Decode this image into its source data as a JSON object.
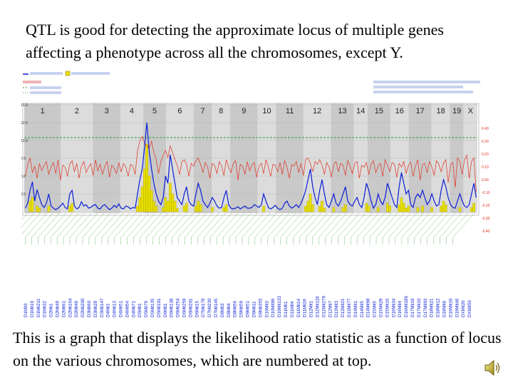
{
  "slide": {
    "title": "QTL is good for detecting the approximate locus of multiple genes affecting a phenotype across all the chromosomes, except Y.",
    "caption": "This is a graph that displays the likelihood ratio statistic as a function of locus on the various chromosomes, which are numbered at top."
  },
  "chart_data": {
    "type": "line",
    "chromosomes": [
      "1",
      "2",
      "3",
      "4",
      "5",
      "6",
      "7",
      "8",
      "9",
      "10",
      "11",
      "12",
      "13",
      "14",
      "15",
      "16",
      "17",
      "18",
      "19",
      "X"
    ],
    "chromosome_lengths": [
      8,
      7,
      6,
      5,
      5,
      6,
      4,
      4,
      6,
      4,
      6,
      6,
      5,
      3,
      5,
      4,
      5,
      4,
      3,
      3
    ],
    "ylim": [
      0,
      15
    ],
    "right_ylim": [
      -0.5,
      0.5
    ],
    "threshold_lrs": 10.4,
    "ticks_left": [
      "2.5",
      "5.0",
      "7.5",
      "10.0",
      "12.5",
      "15.0"
    ],
    "ticks_right": [
      "0.40",
      "0.30",
      "0.20",
      "0.10",
      "0.00",
      "-0.10",
      "-0.20",
      "-0.30",
      "-0.40"
    ],
    "series": [
      {
        "name": "LRS",
        "color": "#0b1fd6",
        "values": [
          0.5,
          1.2,
          3.0,
          4.2,
          1.5,
          3.1,
          2.0,
          1.0,
          0.6,
          1.2,
          2.5,
          0.8,
          0.5,
          0.3,
          0.5,
          0.8,
          1.2,
          0.6,
          0.4,
          2.5,
          3.0,
          0.8,
          0.4,
          0.6,
          1.4,
          0.8,
          1.0,
          0.5,
          0.6,
          0.9,
          1.0,
          0.5,
          0.4,
          0.8,
          1.0,
          0.6,
          0.3,
          0.5,
          0.9,
          0.6,
          1.1,
          0.5,
          0.4,
          0.8,
          0.7,
          0.4,
          0.6,
          0.5,
          2.5,
          4.5,
          6.0,
          9.0,
          12.5,
          8.5,
          6.0,
          4.0,
          2.5,
          1.5,
          1.0,
          2.0,
          5.0,
          4.0,
          8.0,
          6.0,
          4.0,
          2.0,
          1.5,
          1.0,
          2.5,
          3.5,
          1.5,
          1.0,
          0.8,
          2.5,
          4.0,
          3.0,
          1.5,
          1.0,
          0.6,
          1.2,
          2.0,
          1.5,
          0.8,
          0.5,
          0.6,
          2.0,
          3.0,
          1.0,
          0.5,
          0.4,
          0.5,
          0.7,
          0.4,
          0.6,
          0.8,
          0.5,
          0.5,
          0.6,
          1.0,
          0.8,
          0.6,
          1.0,
          2.5,
          1.5,
          0.6,
          0.4,
          0.6,
          0.9,
          0.5,
          0.3,
          0.5,
          1.2,
          1.5,
          0.8,
          0.5,
          0.7,
          1.0,
          0.6,
          1.2,
          2.0,
          3.0,
          4.5,
          6.0,
          3.5,
          2.0,
          1.0,
          3.0,
          4.5,
          2.5,
          1.0,
          0.6,
          1.5,
          2.5,
          1.2,
          0.8,
          1.5,
          2.5,
          3.5,
          1.5,
          1.0,
          0.8,
          1.5,
          2.0,
          1.0,
          0.6,
          2.0,
          4.0,
          3.0,
          1.5,
          0.5,
          1.0,
          2.5,
          1.5,
          1.0,
          2.0,
          4.0,
          3.0,
          2.0,
          1.0,
          0.6,
          3.5,
          5.5,
          4.0,
          2.5,
          3.0,
          1.0,
          0.6,
          2.0,
          2.5,
          2.0,
          3.0,
          2.0,
          1.0,
          1.5,
          2.5,
          1.5,
          0.8,
          1.0,
          3.0,
          4.5,
          3.5,
          2.0,
          1.0,
          0.6,
          0.5,
          1.5,
          2.5,
          1.5,
          0.8,
          0.6,
          1.0,
          2.5,
          4.0,
          2.0
        ]
      },
      {
        "name": "Additive effect",
        "color": "#e03020",
        "values": [
          -0.08,
          0.05,
          0.12,
          -0.04,
          0.03,
          -0.1,
          0.06,
          -0.02,
          0.04,
          0.08,
          -0.06,
          0.02,
          0.07,
          -0.05,
          0.1,
          -0.12,
          0.04,
          0.02,
          -0.08,
          0.05,
          0.09,
          -0.03,
          0.06,
          -0.1,
          0.03,
          0.08,
          -0.04,
          0.02,
          0.06,
          -0.07,
          0.1,
          -0.02,
          0.05,
          -0.06,
          0.03,
          0.08,
          -0.09,
          0.04,
          0.01,
          -0.05,
          0.07,
          -0.03,
          0.06,
          0.02,
          -0.08,
          0.05,
          0.03,
          -0.06,
          0.2,
          0.3,
          0.35,
          0.28,
          0.25,
          0.22,
          0.3,
          0.18,
          0.1,
          -0.05,
          0.08,
          0.15,
          0.2,
          0.12,
          0.25,
          0.18,
          0.1,
          0.04,
          -0.06,
          0.08,
          0.1,
          0.05,
          -0.08,
          0.06,
          0.03,
          0.09,
          0.12,
          0.05,
          -0.04,
          0.07,
          0.02,
          -0.1,
          0.06,
          0.04,
          -0.05,
          0.08,
          0.03,
          -0.07,
          0.1,
          0.02,
          -0.04,
          0.06,
          0.09,
          -0.12,
          0.05,
          0.03,
          -0.06,
          0.08,
          -0.02,
          0.04,
          0.07,
          -0.09,
          0.03,
          0.06,
          -0.05,
          0.1,
          0.02,
          -0.08,
          0.05,
          0.04,
          -0.03,
          0.07,
          -0.06,
          0.09,
          0.02,
          -0.1,
          0.05,
          0.03,
          0.08,
          -0.04,
          0.06,
          -0.07,
          0.1,
          0.12,
          0.06,
          -0.03,
          0.08,
          0.05,
          0.1,
          0.04,
          -0.06,
          0.07,
          0.02,
          -0.09,
          0.05,
          0.08,
          -0.03,
          0.06,
          0.04,
          -0.07,
          0.09,
          0.03,
          -0.05,
          0.06,
          0.08,
          -0.1,
          0.04,
          0.02,
          0.07,
          -0.06,
          0.05,
          0.09,
          -0.04,
          0.03,
          0.06,
          -0.08,
          0.1,
          0.04,
          -0.03,
          0.07,
          0.05,
          -0.09,
          0.06,
          0.02,
          0.08,
          -0.05,
          0.04,
          0.07,
          -0.08,
          0.03,
          0.1,
          -0.12,
          0.05,
          0.06,
          -0.04,
          0.08,
          0.02,
          -0.07,
          0.09,
          0.05,
          -0.03,
          0.06,
          0.1,
          -0.15,
          0.05,
          0.07,
          -0.2,
          0.12,
          0.08,
          -0.06,
          0.1,
          0.15,
          -0.1,
          0.08,
          0.12,
          -0.25
        ]
      },
      {
        "name": "Permutation hits",
        "color": "#e8e000",
        "values": [
          0,
          0,
          1.5,
          2.0,
          0,
          0.8,
          0.5,
          0,
          0,
          0,
          0.8,
          0,
          0,
          0,
          0,
          0,
          0,
          0,
          0,
          0.8,
          1.2,
          0,
          0,
          0,
          0,
          0,
          0,
          0,
          0,
          0,
          0,
          0,
          0,
          0,
          0,
          0,
          0,
          0,
          0,
          0,
          0,
          0,
          0,
          0,
          0,
          0,
          0,
          0,
          0.8,
          2.0,
          3.5,
          6.0,
          9.5,
          5.0,
          3.0,
          1.5,
          0.8,
          0,
          0,
          0.6,
          2.0,
          1.5,
          4.0,
          2.5,
          1.5,
          0.5,
          0,
          0,
          0.8,
          1.2,
          0,
          0,
          0,
          0.8,
          1.5,
          1.0,
          0,
          0,
          0,
          0,
          0.6,
          0,
          0,
          0,
          0,
          0.6,
          1.0,
          0,
          0,
          0,
          0,
          0,
          0,
          0,
          0,
          0,
          0,
          0,
          0,
          0,
          0,
          0,
          0.8,
          0,
          0,
          0,
          0,
          0,
          0,
          0,
          0,
          0,
          0,
          0,
          0,
          0,
          0,
          0,
          0,
          0,
          0.8,
          1.5,
          2.5,
          1.0,
          0,
          0,
          0.8,
          1.5,
          0.5,
          0,
          0,
          0,
          0.6,
          0,
          0,
          0,
          0.6,
          1.0,
          0,
          0,
          0,
          0,
          0,
          0,
          0,
          0,
          1.2,
          0.8,
          0,
          0,
          0,
          0.6,
          0,
          0,
          0,
          1.2,
          0.8,
          0,
          0,
          0,
          1.0,
          2.0,
          1.2,
          0.5,
          0.8,
          0,
          0,
          0,
          0.6,
          0,
          0.8,
          0,
          0,
          0,
          0.6,
          0,
          0,
          0,
          0.8,
          1.5,
          1.0,
          0,
          0,
          0,
          0,
          0,
          0.6,
          0,
          0,
          0,
          0,
          0.6,
          1.2,
          0
        ]
      }
    ],
    "loci": [
      "D1Mit3",
      "D1Mit19",
      "D1Mit211",
      "D1Mit32",
      "D2Mit1",
      "D2Mit49",
      "D2Mit61",
      "D2Mit164",
      "D2Mit48",
      "D2Mit200",
      "D3Mit60",
      "D3Mit28",
      "D3Mit147",
      "D4Mit1",
      "D4Mit13",
      "D4Mit51",
      "D4Mit54",
      "D4Mit71",
      "D5Mit1",
      "D5Mit79",
      "D5Mit135",
      "D5Mit101",
      "D6Mit1",
      "D6Mit138",
      "D6Mit254",
      "D6Mit259",
      "D6Mit201",
      "D6Mit15",
      "D7Mit178",
      "D7Mit230",
      "D7Mit145",
      "D8Mit3",
      "D8Mit4",
      "D8Mit56",
      "D9Mit59",
      "D9Mit51",
      "D9Mit11",
      "D9Mit355",
      "D10Mit3",
      "D10Mit86",
      "D10Mit133",
      "D11Mit1",
      "D11Mit4",
      "D11Mit14",
      "D11Mit36",
      "D12Mit1",
      "D12Mit118",
      "D12Mit279",
      "D12Mit7",
      "D13Mit3",
      "D13Mit21",
      "D13Mit77",
      "D14Mit1",
      "D14Mit5",
      "D14Mit98",
      "D15Mit5",
      "D15Mit29",
      "D15Mit16",
      "D16Mit34",
      "D16Mit4",
      "D16Mit189",
      "D17Mit19",
      "D17Mit10",
      "D17Mit93",
      "D18Mit21",
      "D18Mit12",
      "D18Mit8",
      "D19Mit19",
      "D19Mit46",
      "DXMit26",
      "DXMit50"
    ]
  }
}
